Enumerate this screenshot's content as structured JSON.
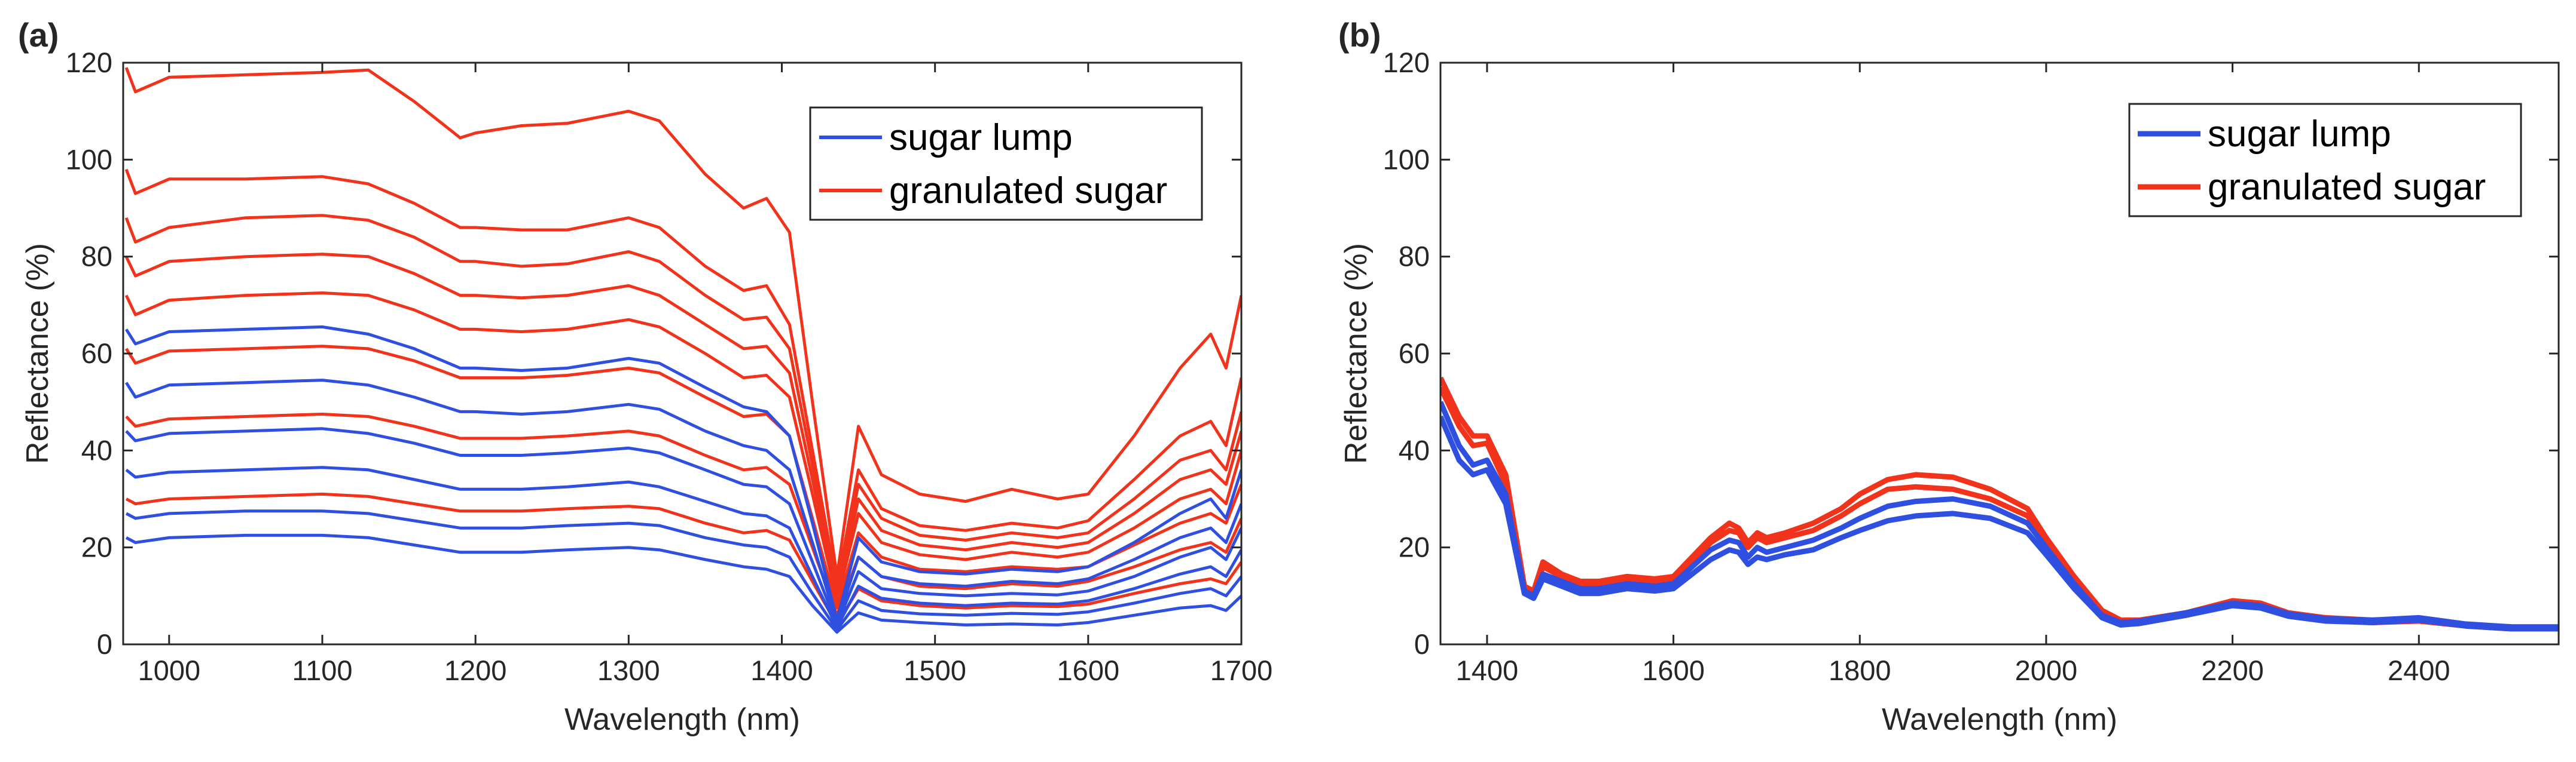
{
  "colors": {
    "sugar_lump": "#2e4fe0",
    "granulated_sugar": "#f2331c",
    "axis": "#262626"
  },
  "chart_data": [
    {
      "panel": "(a)",
      "type": "line",
      "xlabel": "Wavelength (nm)",
      "ylabel": "Reflectance (%)",
      "xlim": [
        970,
        1700
      ],
      "ylim": [
        0,
        120
      ],
      "xticks": [
        "1000",
        "1100",
        "1200",
        "1300",
        "1400",
        "1500",
        "1600",
        "1700"
      ],
      "yticks": [
        "0",
        "20",
        "40",
        "60",
        "80",
        "100",
        "120"
      ],
      "legend": {
        "position": "top-right",
        "entries": [
          "sugar lump",
          "granulated sugar"
        ]
      },
      "grid": false,
      "x": [
        972,
        978,
        1000,
        1050,
        1100,
        1130,
        1160,
        1190,
        1200,
        1230,
        1260,
        1300,
        1320,
        1350,
        1375,
        1390,
        1405,
        1420,
        1436,
        1450,
        1465,
        1490,
        1520,
        1550,
        1580,
        1600,
        1630,
        1660,
        1680,
        1690,
        1700
      ],
      "series": [
        {
          "name": "granulated sugar",
          "values": [
            119,
            114,
            117,
            117.5,
            118,
            118.5,
            112,
            104.5,
            105.5,
            107,
            107.5,
            110,
            108,
            97,
            90,
            92,
            85,
            50,
            14,
            45,
            35,
            31,
            29.5,
            32,
            30,
            31,
            43,
            57,
            64,
            57,
            72
          ]
        },
        {
          "name": "granulated sugar",
          "values": [
            98,
            93,
            96,
            96,
            96.5,
            95,
            91,
            86,
            86,
            85.5,
            85.5,
            88,
            86,
            78,
            73,
            74,
            66,
            40,
            12,
            36,
            28,
            24.5,
            23.5,
            25,
            24,
            25.5,
            34,
            43,
            46,
            41,
            55
          ]
        },
        {
          "name": "granulated sugar",
          "values": [
            88,
            83,
            86,
            88,
            88.5,
            87.5,
            84,
            79,
            79,
            78,
            78.5,
            81,
            79,
            72,
            67,
            67.5,
            61,
            37,
            11,
            33,
            26,
            22.5,
            21.5,
            23,
            22,
            23,
            30,
            38,
            40,
            36,
            48
          ]
        },
        {
          "name": "granulated sugar",
          "values": [
            80,
            76,
            79,
            80,
            80.5,
            80,
            76.5,
            72,
            72,
            71.5,
            72,
            74,
            72,
            66,
            61,
            61.5,
            56,
            34,
            10,
            30,
            23.5,
            20.5,
            19.5,
            21,
            20,
            21,
            27,
            34,
            36,
            33,
            44
          ]
        },
        {
          "name": "granulated sugar",
          "values": [
            72,
            68,
            71,
            72,
            72.5,
            72,
            69,
            65,
            65,
            64.5,
            65,
            67,
            65.5,
            60,
            55,
            55.5,
            51,
            31,
            9,
            27,
            21,
            18.5,
            17.5,
            19,
            18,
            19,
            24,
            30,
            32,
            29,
            40
          ]
        },
        {
          "name": "granulated sugar",
          "values": [
            61,
            58,
            60.5,
            61,
            61.5,
            61,
            58.5,
            55,
            55,
            55,
            55.5,
            57,
            56,
            51,
            47,
            47.5,
            43,
            26,
            7.5,
            23,
            18,
            15.5,
            15,
            16,
            15.5,
            16,
            20.5,
            25,
            27,
            25,
            33
          ]
        },
        {
          "name": "granulated sugar",
          "values": [
            47,
            45,
            46.5,
            47,
            47.5,
            47,
            45,
            42.5,
            42.5,
            42.5,
            43,
            44,
            43,
            39,
            36,
            36.5,
            33,
            20,
            6,
            18,
            14,
            12,
            11.5,
            12.5,
            12,
            13,
            16,
            19.5,
            21,
            19,
            26
          ]
        },
        {
          "name": "granulated sugar",
          "values": [
            30,
            29,
            30,
            30.5,
            31,
            30.5,
            29,
            27.5,
            27.5,
            27.5,
            28,
            28.5,
            28,
            25,
            23,
            23.5,
            21.5,
            13,
            4,
            11.5,
            9,
            8,
            7.5,
            8,
            7.8,
            8.3,
            10.5,
            12.5,
            13.5,
            12.5,
            17
          ]
        },
        {
          "name": "sugar lump",
          "values": [
            65,
            62,
            64.5,
            65,
            65.5,
            64,
            61,
            57,
            57,
            56.5,
            57,
            59,
            58,
            53,
            49,
            48,
            43,
            25,
            5,
            22,
            17,
            15,
            14.5,
            15.5,
            15,
            16,
            21,
            27,
            30,
            26,
            36
          ]
        },
        {
          "name": "sugar lump",
          "values": [
            54,
            51,
            53.5,
            54,
            54.5,
            53.5,
            51,
            48,
            48,
            47.5,
            48,
            49.5,
            48.5,
            44,
            41,
            40,
            36,
            21,
            4.5,
            18,
            14,
            12.5,
            12,
            13,
            12.5,
            13.5,
            17.5,
            22,
            24,
            21,
            29
          ]
        },
        {
          "name": "sugar lump",
          "values": [
            44,
            42,
            43.5,
            44,
            44.5,
            43.5,
            41.5,
            39,
            39,
            39,
            39.5,
            40.5,
            39.5,
            36,
            33,
            32.5,
            29,
            17,
            4,
            15,
            11.5,
            10.5,
            10,
            10.5,
            10.2,
            11,
            14,
            18,
            20,
            17.5,
            24
          ]
        },
        {
          "name": "sugar lump",
          "values": [
            36,
            34.5,
            35.5,
            36,
            36.5,
            36,
            34,
            32,
            32,
            32,
            32.5,
            33.5,
            32.5,
            29.5,
            27,
            26.5,
            24,
            14,
            3.5,
            12,
            9.5,
            8.5,
            8,
            8.5,
            8.3,
            9,
            11.5,
            14.5,
            16,
            14,
            19.5
          ]
        },
        {
          "name": "sugar lump",
          "values": [
            27,
            26,
            27,
            27.5,
            27.5,
            27,
            25.5,
            24,
            24,
            24,
            24.5,
            25,
            24.5,
            22,
            20.5,
            20,
            18,
            10.5,
            3,
            9,
            7,
            6.3,
            6,
            6.4,
            6.2,
            6.7,
            8.5,
            10.5,
            11.5,
            10,
            14
          ]
        },
        {
          "name": "sugar lump",
          "values": [
            22,
            21,
            22,
            22.5,
            22.5,
            22,
            20.5,
            19,
            19,
            19,
            19.5,
            20,
            19.5,
            17.5,
            16,
            15.5,
            14,
            8,
            2.5,
            6.5,
            5,
            4.5,
            4,
            4.2,
            4,
            4.5,
            6,
            7.5,
            8,
            7,
            10
          ]
        }
      ]
    },
    {
      "panel": "(b)",
      "type": "line",
      "xlabel": "Wavelength (nm)",
      "ylabel": "Reflectance (%)",
      "xlim": [
        1350,
        2550
      ],
      "ylim": [
        0,
        120
      ],
      "xticks": [
        "1400",
        "1600",
        "1800",
        "2000",
        "2200",
        "2400"
      ],
      "yticks": [
        "0",
        "20",
        "40",
        "60",
        "80",
        "100",
        "120"
      ],
      "legend": {
        "position": "top-right",
        "entries": [
          "sugar lump",
          "granulated sugar"
        ]
      },
      "grid": false,
      "x": [
        1350,
        1370,
        1385,
        1400,
        1420,
        1440,
        1450,
        1460,
        1480,
        1500,
        1520,
        1550,
        1580,
        1600,
        1620,
        1640,
        1660,
        1670,
        1680,
        1690,
        1700,
        1720,
        1750,
        1780,
        1800,
        1830,
        1860,
        1900,
        1940,
        1980,
        2000,
        2030,
        2060,
        2080,
        2100,
        2150,
        2200,
        2230,
        2260,
        2300,
        2350,
        2400,
        2450,
        2500,
        2550
      ],
      "series": [
        {
          "name": "granulated sugar",
          "values": [
            55,
            47,
            43,
            43,
            35,
            12,
            11,
            17,
            14.5,
            13,
            13,
            14,
            13.5,
            14,
            18,
            22,
            25,
            24,
            21,
            23,
            22,
            23,
            25,
            28,
            31,
            34,
            35,
            34.5,
            32,
            28,
            22,
            14,
            7,
            5,
            5,
            6.5,
            9,
            8.5,
            6.5,
            5.5,
            5,
            5.2,
            4,
            3.5,
            3.5
          ]
        },
        {
          "name": "granulated sugar",
          "values": [
            53,
            45,
            41,
            41.5,
            33,
            11.5,
            10.5,
            16,
            14,
            12.5,
            12.5,
            13.5,
            13,
            13.5,
            17,
            21,
            23.5,
            23,
            20,
            22,
            21,
            22,
            23.5,
            26.5,
            29,
            32,
            32.5,
            32,
            30,
            26.5,
            21,
            13,
            6.5,
            4.5,
            4.5,
            6,
            8.5,
            8,
            6,
            5,
            4.5,
            4.8,
            3.8,
            3.2,
            3.2
          ]
        },
        {
          "name": "sugar lump",
          "values": [
            50,
            41,
            37,
            38,
            31,
            11,
            10,
            14.5,
            13,
            11.5,
            11.5,
            12.5,
            12,
            12.5,
            16,
            19.5,
            21.5,
            21,
            18,
            20,
            19,
            20,
            21.5,
            24,
            26,
            28.5,
            29.5,
            30,
            28.5,
            25,
            20,
            12.5,
            6,
            4.5,
            4.8,
            6.5,
            8.5,
            8,
            6.3,
            5.3,
            5,
            5.5,
            4.2,
            3.6,
            3.6
          ]
        },
        {
          "name": "sugar lump",
          "values": [
            47,
            38,
            35,
            36,
            29,
            10.5,
            9.5,
            13.5,
            12,
            10.5,
            10.5,
            11.5,
            11,
            11.5,
            14.5,
            17.5,
            19.5,
            19,
            16.5,
            18,
            17.5,
            18.5,
            19.5,
            22,
            23.5,
            25.5,
            26.5,
            27,
            26,
            23,
            18.5,
            11.5,
            5.5,
            4,
            4.3,
            6,
            8,
            7.5,
            5.8,
            4.8,
            4.5,
            5,
            3.8,
            3.2,
            3.2
          ]
        }
      ]
    }
  ]
}
